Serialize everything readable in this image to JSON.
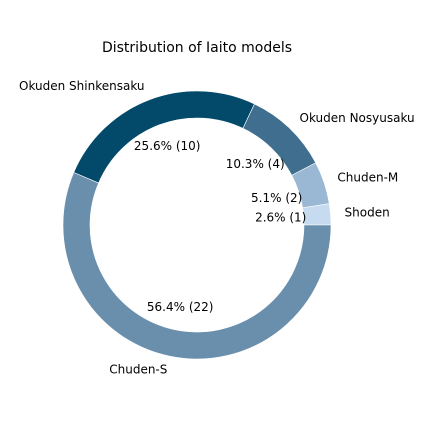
{
  "chart_data": {
    "type": "pie",
    "donut": true,
    "title": "Distribution of Iaito models",
    "start_angle_deg": 0,
    "direction": "counterclockwise",
    "slices": [
      {
        "label": "Shoden",
        "value": 1,
        "percent_label": "2.6% (1)",
        "color": "#c6dbef"
      },
      {
        "label": "Chuden-M",
        "value": 2,
        "percent_label": "5.1% (2)",
        "color": "#9ab8d3"
      },
      {
        "label": "Okuden Nosyusaku",
        "value": 4,
        "percent_label": "10.3% (4)",
        "color": "#3f6e8e"
      },
      {
        "label": "Okuden Shinkensaku",
        "value": 10,
        "percent_label": "25.6% (10)",
        "color": "#034a6a"
      },
      {
        "label": "Chuden-S",
        "value": 22,
        "percent_label": "56.4% (22)",
        "color": "#6a8fad"
      }
    ]
  }
}
